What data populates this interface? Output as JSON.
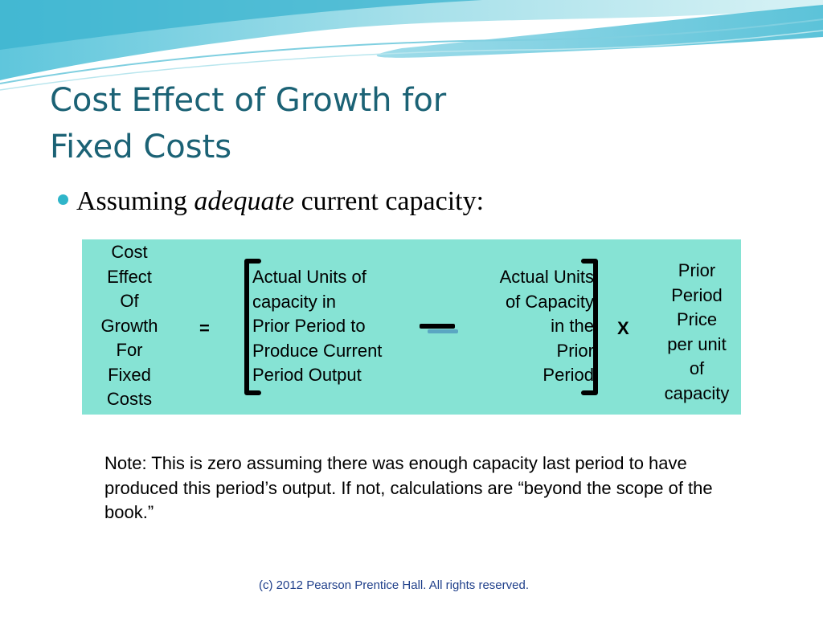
{
  "slide": {
    "title_lines": [
      "Cost Effect of Growth for",
      "Fixed Costs"
    ],
    "bullet": {
      "before": "Assuming ",
      "emphasis": "adequate",
      "after": " current capacity:"
    },
    "formula": {
      "cost_effect_lines": [
        "Cost",
        "Effect",
        "Of",
        "Growth",
        "For",
        "Fixed",
        "Costs"
      ],
      "equals": "=",
      "left_term_lines": [
        "Actual Units of",
        "capacity in",
        "Prior Period to",
        "Produce Current",
        "Period Output"
      ],
      "right_term_lines": [
        "Actual Units",
        "of Capacity",
        "in the",
        "Prior",
        "Period"
      ],
      "times": "X",
      "price_lines": [
        "Prior",
        "Period",
        "Price",
        "per unit",
        "of",
        "capacity"
      ]
    },
    "note": "Note: This is zero assuming there was enough capacity last period to have produced this period’s output. If not, calculations are “beyond the scope of the book.”",
    "footer": "(c) 2012 Pearson Prentice Hall. All rights reserved.",
    "colors": {
      "title": "#1b6275",
      "formula_background": "#86e3d4",
      "bullet": "#2fb5c9",
      "footer": "#1f3f8a"
    }
  }
}
